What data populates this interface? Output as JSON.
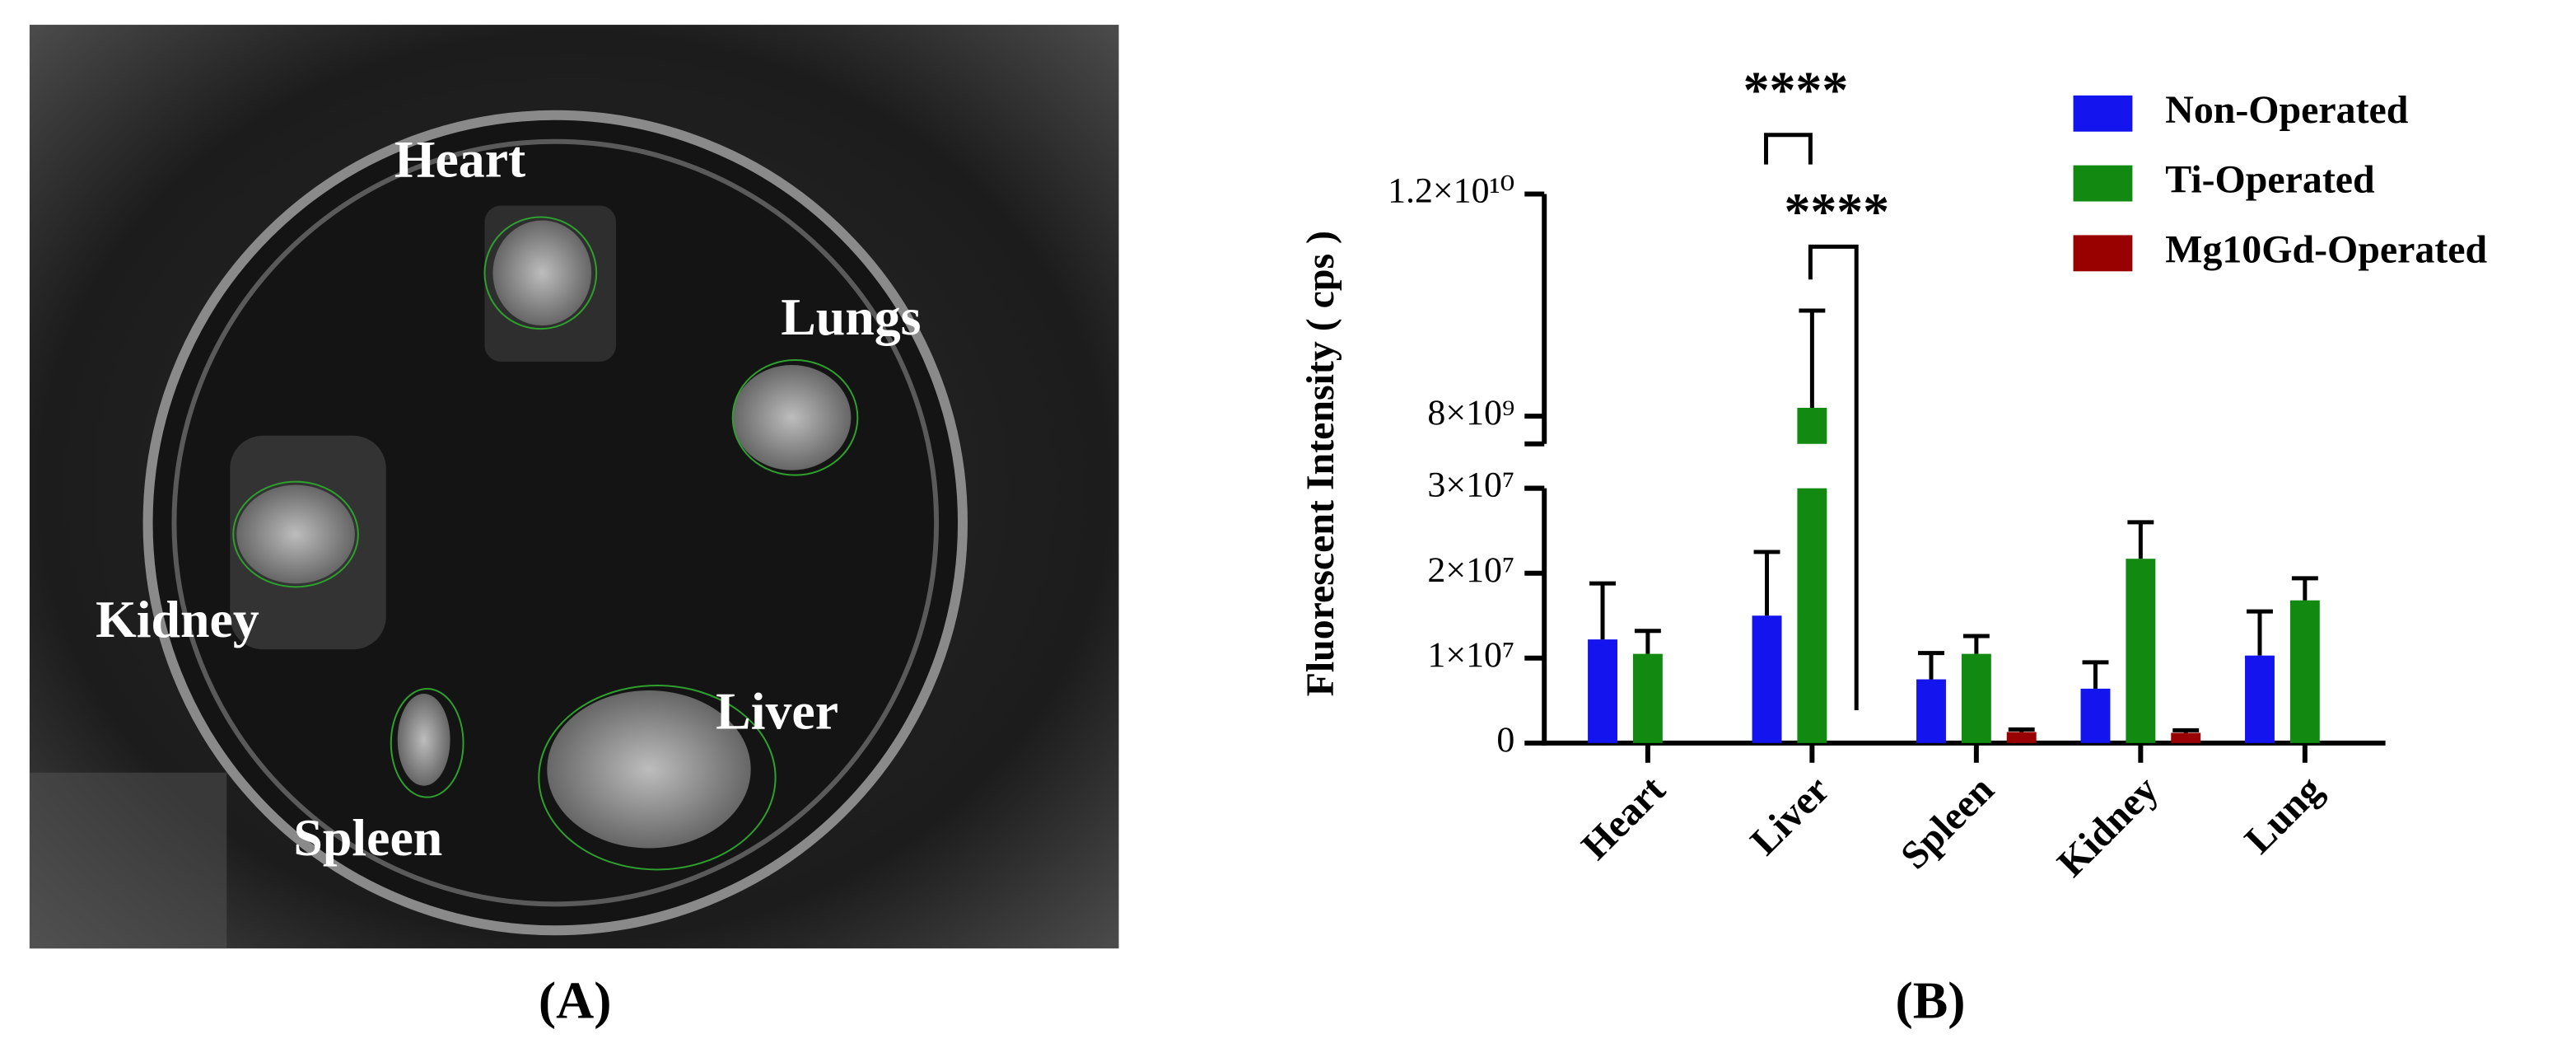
{
  "panel_labels": [
    "(A)",
    "(B)"
  ],
  "photo_labels": [
    "Heart",
    "Lungs",
    "Kidney",
    "Spleen",
    "Liver"
  ],
  "chart_data": {
    "type": "bar",
    "y_label": "Fluorescent Intensity ( cps )",
    "categories": [
      "Heart",
      "Liver",
      "Spleen",
      "Kidney",
      "Lung"
    ],
    "series": [
      {
        "name": "Non-Operated",
        "color": "#1414ee",
        "values": [
          12200000,
          15000000,
          7500000,
          6400000,
          10300000
        ],
        "errors": [
          6600000,
          7500000,
          3100000,
          3100000,
          5200000
        ]
      },
      {
        "name": "Ti-Operated",
        "color": "#128a12",
        "values": [
          10500000,
          8150000000,
          10500000,
          21700000,
          16800000
        ],
        "errors": [
          2700000,
          1750000000,
          2100000,
          4300000,
          2600000
        ]
      },
      {
        "name": "Mg10Gd-Operated",
        "color": "#990000",
        "values": [
          null,
          null,
          1300000,
          1200000,
          null
        ],
        "errors": [
          null,
          null,
          300000,
          300000,
          null
        ]
      }
    ],
    "ylim": [
      0,
      12000000000
    ],
    "ybreak": [
      30000000,
      7500000000
    ],
    "yticks": [
      0,
      {
        "value": 10000000,
        "label": "1×10⁷"
      },
      {
        "value": 20000000,
        "label": "2×10⁷"
      },
      {
        "value": 30000000,
        "label": "3×10⁷"
      },
      {
        "value": 8000000000,
        "label": "8×10⁹"
      },
      {
        "value": 12000000000,
        "label": "1.2×10¹⁰"
      }
    ],
    "annotations": [
      "****",
      "****"
    ]
  }
}
